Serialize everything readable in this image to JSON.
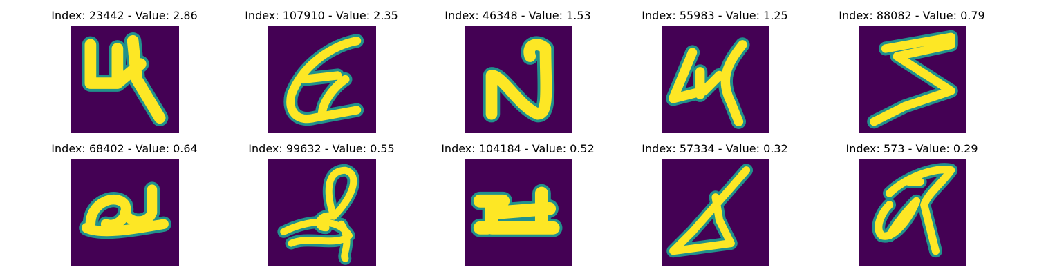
{
  "colors": {
    "background": "#440154",
    "stroke": "#fde725",
    "edge": "#21918c"
  },
  "panels": [
    {
      "title": "Index: 23442 - Value: 2.86",
      "glyph": "glyph-1"
    },
    {
      "title": "Index: 107910 - Value: 2.35",
      "glyph": "glyph-2"
    },
    {
      "title": "Index: 46348 - Value: 1.53",
      "glyph": "glyph-3"
    },
    {
      "title": "Index: 55983 - Value: 1.25",
      "glyph": "glyph-4"
    },
    {
      "title": "Index: 88082 - Value: 0.79",
      "glyph": "glyph-5"
    },
    {
      "title": "Index: 68402 - Value: 0.64",
      "glyph": "glyph-6"
    },
    {
      "title": "Index: 99632 - Value: 0.55",
      "glyph": "glyph-7"
    },
    {
      "title": "Index: 104184 - Value: 0.52",
      "glyph": "glyph-8"
    },
    {
      "title": "Index: 57334 - Value: 0.32",
      "glyph": "glyph-9"
    },
    {
      "title": "Index: 573 - Value: 0.29",
      "glyph": "glyph-10"
    }
  ]
}
